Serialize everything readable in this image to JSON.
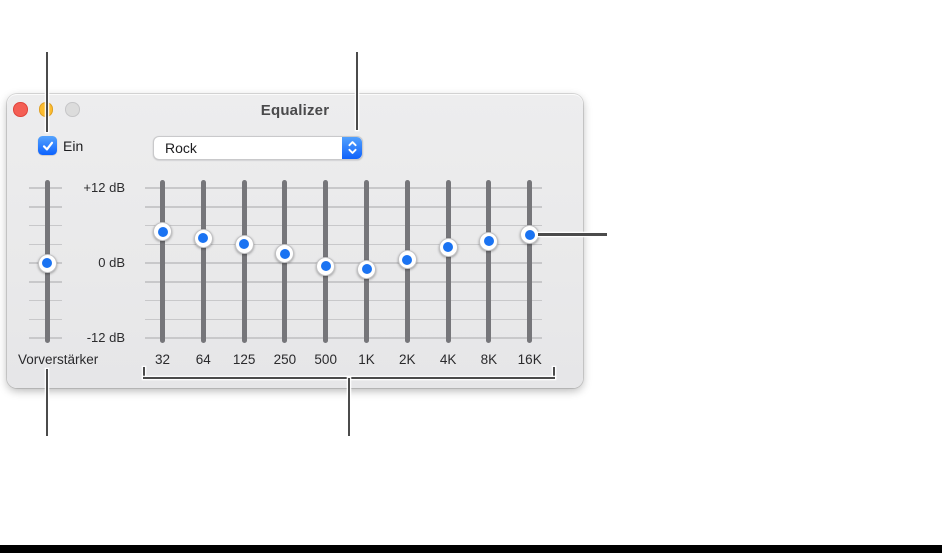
{
  "window": {
    "title": "Equalizer",
    "power_checkbox": {
      "label": "Ein",
      "checked": true
    },
    "preset_select": {
      "value": "Rock"
    },
    "db_scale": {
      "top_label": "+12 dB",
      "mid_label": "0 dB",
      "bottom_label": "-12 dB",
      "max_db": 12,
      "min_db": -12,
      "grid_step_db": 3
    },
    "preamp": {
      "label": "Vorverstärker",
      "value_db": 0
    },
    "bands": [
      {
        "label": "32",
        "value_db": 5
      },
      {
        "label": "64",
        "value_db": 4
      },
      {
        "label": "125",
        "value_db": 3
      },
      {
        "label": "250",
        "value_db": 1.5
      },
      {
        "label": "500",
        "value_db": -0.5
      },
      {
        "label": "1K",
        "value_db": -1
      },
      {
        "label": "2K",
        "value_db": 0.5
      },
      {
        "label": "4K",
        "value_db": 2.5
      },
      {
        "label": "8K",
        "value_db": 3.5
      },
      {
        "label": "16K",
        "value_db": 4.5
      }
    ]
  },
  "colors": {
    "accent_blue": "#0c62fe",
    "knob_dot_blue": "#1a73f2",
    "track_gray": "#76767a",
    "grid_gray": "#c8c8ca",
    "window_bg": "#e9e9ea",
    "traffic_red": "#f45f55",
    "traffic_yellow": "#fcbc2f",
    "traffic_gray": "#dcdcdc",
    "callout_gray": "#4b4b4b",
    "bottom_bar": "#000000"
  }
}
